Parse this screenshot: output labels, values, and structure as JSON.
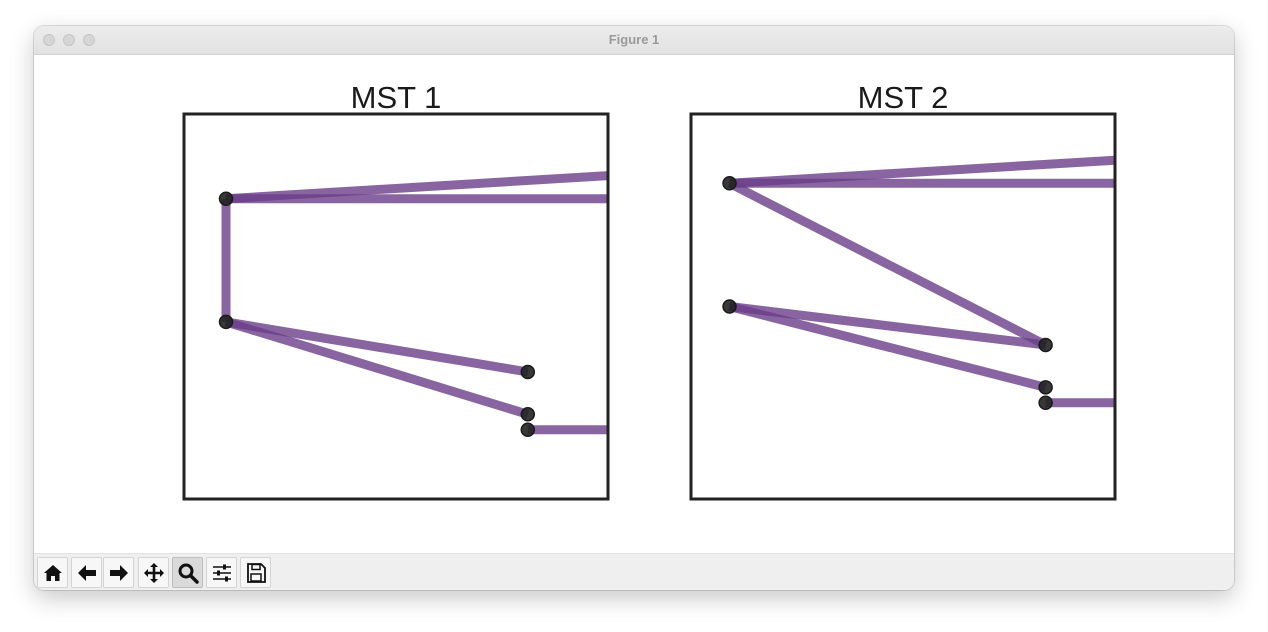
{
  "window": {
    "title": "Figure 1"
  },
  "chart_data": [
    {
      "type": "network",
      "title": "MST 1",
      "nodes": [
        [
          0,
          0.78
        ],
        [
          0,
          0.46
        ],
        [
          0.79,
          0.33
        ],
        [
          0.79,
          0.22
        ],
        [
          0.79,
          0.18
        ]
      ],
      "edges_visible": [
        {
          "from": [
            0,
            0.78
          ],
          "to": [
            1.0,
            0.84
          ]
        },
        {
          "from": [
            0,
            0.78
          ],
          "to": [
            1.0,
            0.78
          ]
        },
        {
          "from": [
            0,
            0.78
          ],
          "to": [
            0,
            0.46
          ]
        },
        {
          "from": [
            0,
            0.46
          ],
          "to": [
            0.79,
            0.33
          ]
        },
        {
          "from": [
            0,
            0.46
          ],
          "to": [
            0.79,
            0.22
          ]
        },
        {
          "from": [
            0.79,
            0.18
          ],
          "to": [
            1.0,
            0.18
          ]
        }
      ],
      "xlim": [
        -0.11,
        1.0
      ],
      "ylim": [
        0,
        1
      ],
      "grid": false,
      "ticks": false
    },
    {
      "type": "network",
      "title": "MST 2",
      "nodes": [
        [
          0,
          0.82
        ],
        [
          0,
          0.5
        ],
        [
          0.82,
          0.4
        ],
        [
          0.82,
          0.29
        ],
        [
          0.82,
          0.25
        ]
      ],
      "edges_visible": [
        {
          "from": [
            0,
            0.82
          ],
          "to": [
            1.0,
            0.88
          ]
        },
        {
          "from": [
            0,
            0.82
          ],
          "to": [
            1.0,
            0.82
          ]
        },
        {
          "from": [
            0,
            0.82
          ],
          "to": [
            0.82,
            0.4
          ]
        },
        {
          "from": [
            0,
            0.5
          ],
          "to": [
            0.82,
            0.4
          ]
        },
        {
          "from": [
            0,
            0.5
          ],
          "to": [
            0.82,
            0.29
          ]
        },
        {
          "from": [
            0.82,
            0.25
          ],
          "to": [
            1.0,
            0.25
          ]
        }
      ],
      "xlim": [
        -0.1,
        1.0
      ],
      "ylim": [
        0,
        1
      ],
      "grid": false,
      "ticks": false
    }
  ],
  "colors": {
    "edge": "#6a3d8a",
    "node": "#222222",
    "node_edge": "#1a1a1a",
    "frame": "#222222"
  },
  "toolbar": [
    {
      "name": "home-button",
      "icon": "home-icon"
    },
    {
      "name": "back-button",
      "icon": "arrow-left-icon"
    },
    {
      "name": "forward-button",
      "icon": "arrow-right-icon"
    },
    {
      "name": "pan-button",
      "icon": "move-icon"
    },
    {
      "name": "zoom-button",
      "icon": "magnifier-icon",
      "active": true
    },
    {
      "name": "configure-subplots-button",
      "icon": "sliders-icon"
    },
    {
      "name": "save-button",
      "icon": "floppy-icon"
    }
  ]
}
